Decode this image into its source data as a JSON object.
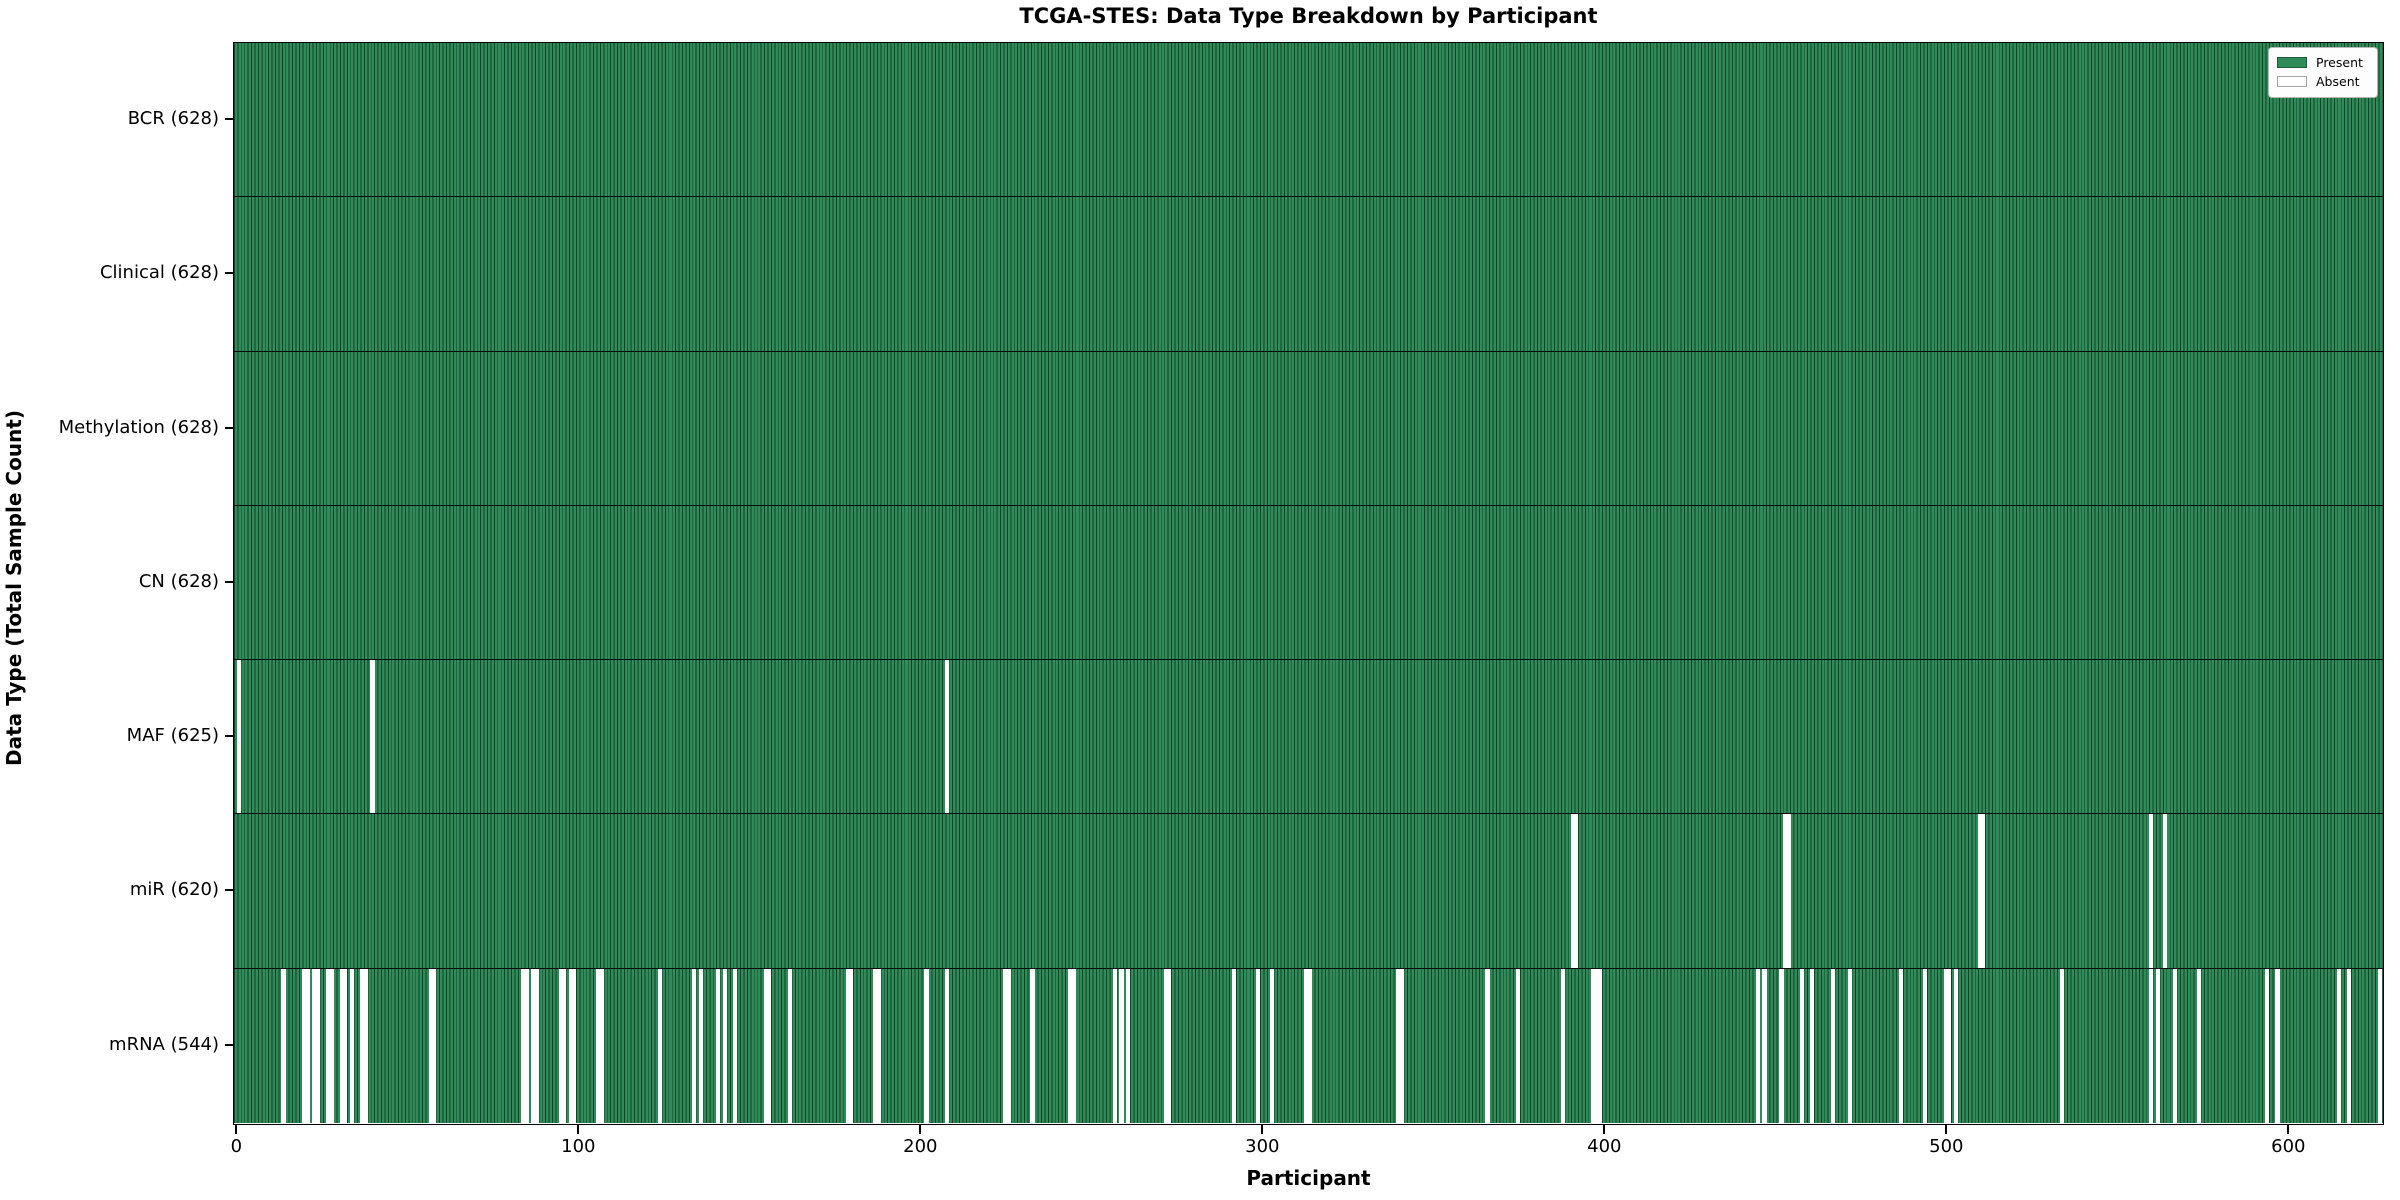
{
  "title": "TCGA-STES: Data Type Breakdown by Participant",
  "x_axis_title": "Participant",
  "y_axis_title": "Data Type (Total Sample Count)",
  "legend": {
    "position": "upper right",
    "entries": [
      {
        "label": "Present",
        "color": "#2f8b58"
      },
      {
        "label": "Absent",
        "color": "#ffffff"
      }
    ]
  },
  "colors": {
    "present_fill": "#2f8b58",
    "bar_edge": "#14412a",
    "absent_fill": "#ffffff",
    "plot_border": "#000000"
  },
  "chart_data": {
    "type": "heatmap",
    "title": "TCGA-STES: Data Type Breakdown by Participant",
    "xlabel": "Participant",
    "ylabel": "Data Type (Total Sample Count)",
    "x_ticks": [
      0,
      100,
      200,
      300,
      400,
      500,
      600
    ],
    "xlim": [
      -0.5,
      627.5
    ],
    "total_participants": 628,
    "grid": false,
    "legend_position": "upper right",
    "rows": [
      {
        "label": "BCR (628)",
        "data_type": "BCR",
        "present_count": 628,
        "absent_participants": []
      },
      {
        "label": "Clinical (628)",
        "data_type": "Clinical",
        "present_count": 628,
        "absent_participants": []
      },
      {
        "label": "Methylation (628)",
        "data_type": "Methylation",
        "present_count": 628,
        "absent_participants": []
      },
      {
        "label": "CN (628)",
        "data_type": "CN",
        "present_count": 628,
        "absent_participants": []
      },
      {
        "label": "MAF (625)",
        "data_type": "MAF",
        "present_count": 625,
        "absent_participants": [
          1,
          40,
          208
        ]
      },
      {
        "label": "miR (620)",
        "data_type": "miR",
        "present_count": 620,
        "absent_participants": [
          391,
          392,
          453,
          454,
          510,
          511,
          560,
          564
        ]
      },
      {
        "label": "mRNA (544)",
        "data_type": "mRNA",
        "present_count": 544,
        "absent_participants": [
          14,
          20,
          21,
          23,
          24,
          27,
          28,
          31,
          32,
          34,
          37,
          38,
          57,
          58,
          84,
          85,
          87,
          88,
          95,
          96,
          98,
          99,
          106,
          107,
          124,
          134,
          136,
          141,
          143,
          146,
          155,
          156,
          162,
          179,
          180,
          187,
          188,
          202,
          208,
          225,
          226,
          233,
          244,
          245,
          257,
          259,
          261,
          272,
          273,
          292,
          299,
          303,
          313,
          314,
          340,
          341,
          366,
          375,
          388,
          397,
          398,
          399,
          445,
          447,
          452,
          458,
          461,
          467,
          472,
          487,
          494,
          500,
          501,
          503,
          534,
          560,
          562,
          567,
          574,
          594,
          597,
          615,
          618,
          627
        ]
      }
    ]
  }
}
